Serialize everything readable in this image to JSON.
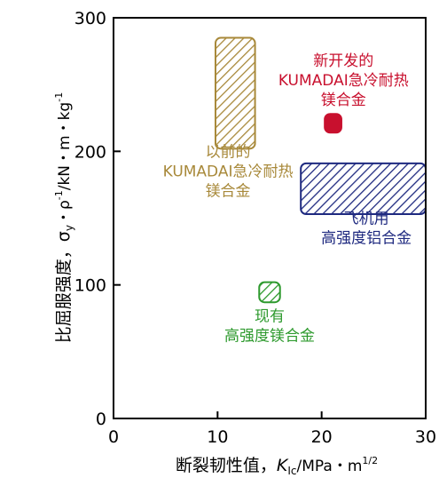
{
  "chart_data": {
    "type": "scatter",
    "title": "",
    "xlabel_main": "断裂韧性值，",
    "xlabel_symbol": "K",
    "xlabel_sub": "Ic",
    "xlabel_unit": "/MPa・m",
    "xlabel_sup": "1/2",
    "ylabel_main": "比屈服强度，",
    "ylabel_symbol": "σ",
    "ylabel_sub": "y",
    "ylabel_rest": "・ρ",
    "ylabel_sup": "-1",
    "ylabel_unit": "/kN・m・kg",
    "ylabel_sup2": "-1",
    "xlim": [
      0,
      30
    ],
    "ylim": [
      0,
      300
    ],
    "x_ticks": [
      0,
      10,
      20,
      30
    ],
    "y_ticks": [
      0,
      100,
      200,
      300
    ],
    "regions": [
      {
        "name": "以前的KUMADAI急冷耐热镁合金",
        "x": [
          9.8,
          13.6
        ],
        "y": [
          202,
          285
        ],
        "color": "#a8893a",
        "fill": "hatch",
        "label_lines": [
          "以前的",
          "KUMADAI急冷耐热",
          "镁合金"
        ],
        "label_at": [
          11.0,
          196
        ]
      },
      {
        "name": "新开发的KUMADAI急冷耐热镁合金",
        "x": [
          20.3,
          21.9
        ],
        "y": [
          214,
          228
        ],
        "color": "#c8102e",
        "fill": "solid",
        "label_lines": [
          "新开发的",
          "KUMADAI急冷耐热",
          "镁合金"
        ],
        "label_at": [
          22.1,
          264
        ]
      },
      {
        "name": "飞机用高强度铝合金",
        "x": [
          18.0,
          30.0
        ],
        "y": [
          153,
          191
        ],
        "color": "#1f2a80",
        "fill": "hatch",
        "label_lines": [
          "飞机用",
          "高强度铝合金"
        ],
        "label_at": [
          24.3,
          146
        ]
      },
      {
        "name": "现有高强度镁合金",
        "x": [
          14.0,
          16.0
        ],
        "y": [
          87,
          102
        ],
        "color": "#2e9a2e",
        "fill": "hatch",
        "label_lines": [
          "现有",
          "高强度镁合金"
        ],
        "label_at": [
          15.0,
          73
        ]
      }
    ]
  }
}
